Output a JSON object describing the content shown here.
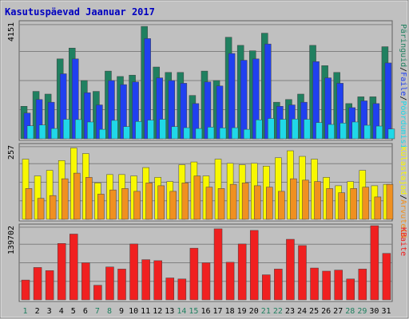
{
  "chart_data": {
    "title": "Kasutuspäevad Jaanuar 2017",
    "type": "bar",
    "categories": [
      "1",
      "2",
      "3",
      "4",
      "5",
      "6",
      "7",
      "8",
      "9",
      "10",
      "11",
      "12",
      "13",
      "14",
      "15",
      "16",
      "17",
      "18",
      "19",
      "20",
      "21",
      "22",
      "23",
      "24",
      "25",
      "26",
      "27",
      "28",
      "29",
      "30",
      "31"
    ],
    "weekend_days": [
      "1",
      "7",
      "8",
      "14",
      "15",
      "21",
      "22",
      "28",
      "29"
    ],
    "panels": [
      {
        "name": "hits",
        "max_label": "4151",
        "ylim": [
          0,
          4300
        ],
        "legend": [
          "Päringuid",
          "Faile",
          "Pöördumisi"
        ],
        "series": [
          {
            "name": "Päringuid",
            "color": "#208060",
            "values": [
              1200,
              1750,
              1650,
              2950,
              3350,
              2150,
              1750,
              2500,
              2300,
              2350,
              4150,
              2650,
              2450,
              2450,
              1600,
              2500,
              2150,
              3750,
              3450,
              3250,
              3900,
              1350,
              1450,
              1650,
              3450,
              2700,
              2450,
              1300,
              1550,
              1550,
              3400
            ]
          },
          {
            "name": "Faile",
            "color": "#2040f0",
            "values": [
              950,
              1450,
              1350,
              2400,
              2950,
              1700,
              1250,
              2150,
              2000,
              2100,
              3700,
              2250,
              2150,
              2050,
              1300,
              2100,
              1950,
              3150,
              2900,
              2950,
              3500,
              1200,
              1250,
              1350,
              2850,
              2250,
              2050,
              1150,
              1400,
              1300,
              2800
            ]
          },
          {
            "name": "Pöördumisi",
            "color": "#20d8e8",
            "values": [
              480,
              510,
              380,
              720,
              710,
              620,
              350,
              680,
              450,
              640,
              690,
              720,
              450,
              410,
              380,
              430,
              400,
              410,
              350,
              700,
              750,
              720,
              730,
              720,
              600,
              530,
              580,
              620,
              500,
              470,
              360
            ]
          }
        ]
      },
      {
        "name": "visits",
        "max_label": "257",
        "ylim": [
          0,
          265
        ],
        "legend": [
          "Külastajad",
          "Arvuteid"
        ],
        "series": [
          {
            "name": "Külastajad",
            "color": "#f8f800",
            "values": [
              215,
              155,
              175,
              210,
              255,
              235,
              130,
              160,
              160,
              155,
              185,
              150,
              135,
              195,
              205,
              155,
              215,
              200,
              195,
              200,
              190,
              220,
              245,
              225,
              215,
              150,
              120,
              135,
              175,
              120,
              125
            ]
          },
          {
            "name": "Arvuteid",
            "color": "#f09020",
            "values": [
              110,
              75,
              85,
              145,
              165,
              150,
              90,
              105,
              110,
              100,
              130,
              120,
              100,
              130,
              155,
              115,
              110,
              125,
              130,
              120,
              115,
              100,
              145,
              140,
              135,
              110,
              95,
              110,
              115,
              80,
              125
            ]
          }
        ]
      },
      {
        "name": "bytes",
        "max_label": "139702",
        "ylim": [
          0,
          142000
        ],
        "legend": [
          "KBaite"
        ],
        "series": [
          {
            "name": "KBaite",
            "color": "#f02020",
            "values": [
              38000,
              62000,
              56000,
              108000,
              126000,
              71000,
              28000,
              63000,
              59000,
              107000,
              77000,
              75000,
              42000,
              40000,
              99000,
              71000,
              136000,
              72000,
              107000,
              133000,
              48000,
              59000,
              116000,
              104000,
              61000,
              55000,
              57000,
              40000,
              59000,
              142000,
              89000
            ]
          }
        ]
      }
    ]
  }
}
